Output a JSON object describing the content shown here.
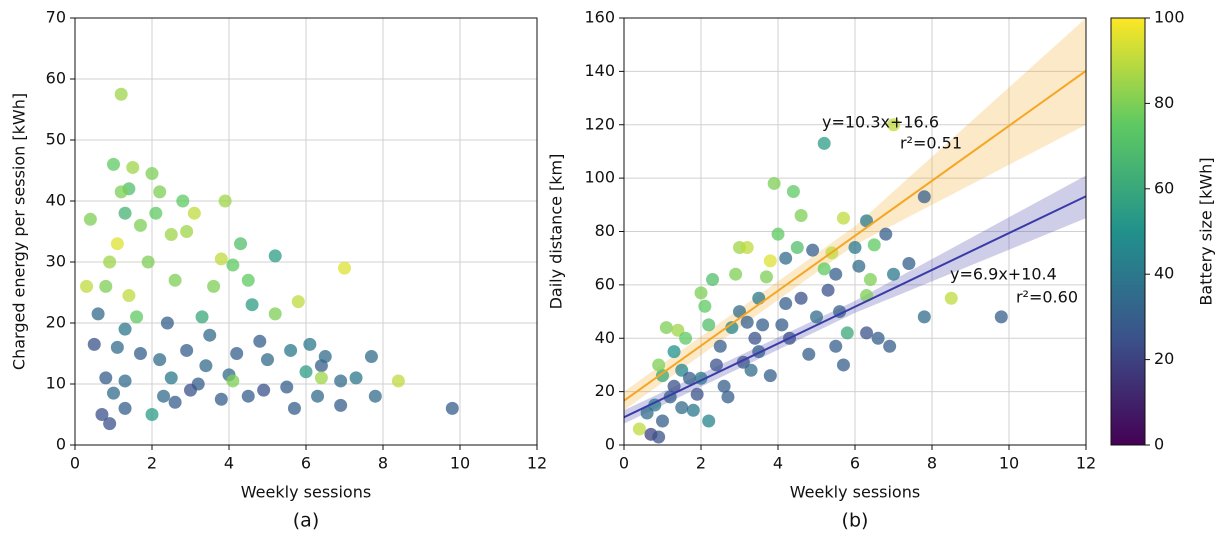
{
  "chart_data": [
    {
      "type": "scatter",
      "caption": "(a)",
      "xlabel": "Weekly sessions",
      "ylabel": "Charged energy per session [kWh]",
      "xlim": [
        0,
        12
      ],
      "ylim": [
        0,
        70
      ],
      "xticks": [
        0,
        2,
        4,
        6,
        8,
        10,
        12
      ],
      "yticks": [
        0,
        10,
        20,
        30,
        40,
        50,
        60,
        70
      ],
      "grid": true,
      "x": [
        1.2,
        1.0,
        2.0,
        1.5,
        1.4,
        1.2,
        2.2,
        2.8,
        3.9,
        0.4,
        1.3,
        2.1,
        1.7,
        3.1,
        2.9,
        1.1,
        2.5,
        4.3,
        5.2,
        7.0,
        0.9,
        1.9,
        3.8,
        4.1,
        0.3,
        0.8,
        1.4,
        2.6,
        3.6,
        4.5,
        5.8,
        4.6,
        1.6,
        3.3,
        5.2,
        0.6,
        1.3,
        2.4,
        3.5,
        4.8,
        0.5,
        1.1,
        1.7,
        2.2,
        2.9,
        3.4,
        4.2,
        5.0,
        5.6,
        6.1,
        6.4,
        0.8,
        1.3,
        2.5,
        3.2,
        4.0,
        4.9,
        5.5,
        6.0,
        6.5,
        6.9,
        7.3,
        7.7,
        6.3,
        6.9,
        7.8,
        8.4,
        9.8,
        0.7,
        0.9,
        1.3,
        2.0,
        2.6,
        3.0,
        4.5,
        5.7,
        1.0,
        2.3,
        3.8,
        4.1,
        6.4
      ],
      "values": [
        57.5,
        46,
        44.5,
        45.5,
        42,
        41.5,
        41.5,
        40,
        40,
        37,
        38,
        38,
        36,
        38,
        35,
        33,
        34.5,
        33,
        31,
        29,
        30,
        30,
        30.5,
        29.5,
        26,
        26,
        24.5,
        27,
        26,
        27,
        23.5,
        23,
        21,
        21,
        21.5,
        21.5,
        19,
        20,
        18,
        17,
        16.5,
        16,
        15,
        14,
        15.5,
        13,
        15,
        14,
        15.5,
        16.5,
        13,
        11,
        10.5,
        11,
        10,
        11.5,
        9,
        9.5,
        12,
        14.5,
        10.5,
        11,
        14.5,
        8,
        6.5,
        8,
        10.5,
        6,
        5,
        3.5,
        6,
        5,
        7,
        9,
        8,
        6,
        8.5,
        8,
        7.5,
        10.5,
        11
      ],
      "color_values": [
        85,
        75,
        80,
        85,
        70,
        80,
        80,
        75,
        85,
        80,
        65,
        75,
        80,
        90,
        85,
        95,
        85,
        70,
        55,
        95,
        85,
        80,
        90,
        75,
        90,
        80,
        90,
        80,
        80,
        75,
        90,
        55,
        75,
        60,
        80,
        35,
        40,
        30,
        35,
        30,
        25,
        35,
        30,
        35,
        30,
        35,
        30,
        35,
        40,
        40,
        30,
        30,
        35,
        40,
        30,
        35,
        25,
        30,
        55,
        35,
        35,
        40,
        35,
        35,
        30,
        35,
        90,
        30,
        25,
        25,
        30,
        55,
        30,
        25,
        30,
        30,
        35,
        35,
        30,
        80,
        85
      ]
    },
    {
      "type": "scatter",
      "caption": "(b)",
      "xlabel": "Weekly sessions",
      "ylabel": "Daily distance [km]",
      "xlim": [
        0,
        12
      ],
      "ylim": [
        0,
        160
      ],
      "xticks": [
        0,
        2,
        4,
        6,
        8,
        10,
        12
      ],
      "yticks": [
        0,
        20,
        40,
        60,
        80,
        100,
        120,
        140,
        160
      ],
      "grid": true,
      "x": [
        0.4,
        0.7,
        0.9,
        1.0,
        0.6,
        0.8,
        1.2,
        1.0,
        0.9,
        1.1,
        1.4,
        1.6,
        1.3,
        1.5,
        1.7,
        1.9,
        1.8,
        2.0,
        2.1,
        2.3,
        2.2,
        2.5,
        2.4,
        2.6,
        2.7,
        2.8,
        2.9,
        3.0,
        3.2,
        3.0,
        3.2,
        3.4,
        3.6,
        3.1,
        3.3,
        3.5,
        3.7,
        3.8,
        3.8,
        3.9,
        4.0,
        4.1,
        4.2,
        4.4,
        4.5,
        4.6,
        4.3,
        4.6,
        4.8,
        4.9,
        5.0,
        5.2,
        5.2,
        5.3,
        5.4,
        5.5,
        5.6,
        5.7,
        5.7,
        5.8,
        6.0,
        6.1,
        6.3,
        6.3,
        6.5,
        6.6,
        6.8,
        7.0,
        7.0,
        6.9,
        7.4,
        7.8,
        7.8,
        8.5,
        9.8,
        1.3,
        2.0,
        2.2,
        1.5,
        3.5,
        4.2,
        5.5,
        6.3,
        6.4
      ],
      "values": [
        6,
        4,
        3,
        9,
        12,
        15,
        18,
        26,
        30,
        44,
        43,
        40,
        22,
        28,
        25,
        19,
        13,
        57,
        52,
        62,
        45,
        37,
        30,
        22,
        18,
        44,
        64,
        74,
        74,
        50,
        46,
        40,
        45,
        31,
        28,
        35,
        63,
        69,
        26,
        98,
        79,
        45,
        53,
        95,
        74,
        86,
        40,
        55,
        34,
        73,
        48,
        113,
        66,
        58,
        72,
        64,
        50,
        85,
        30,
        42,
        74,
        67,
        84,
        42,
        75,
        40,
        79,
        120,
        64,
        37,
        68,
        93,
        48,
        55,
        48,
        35,
        25,
        9,
        14,
        55,
        70,
        37,
        56,
        62
      ],
      "color_values": [
        90,
        20,
        25,
        30,
        35,
        40,
        30,
        60,
        80,
        80,
        85,
        75,
        25,
        45,
        30,
        25,
        40,
        80,
        75,
        70,
        70,
        30,
        25,
        30,
        30,
        45,
        80,
        85,
        90,
        35,
        30,
        25,
        30,
        25,
        35,
        30,
        80,
        95,
        30,
        80,
        75,
        30,
        30,
        75,
        70,
        80,
        25,
        25,
        30,
        30,
        35,
        55,
        75,
        25,
        90,
        30,
        30,
        90,
        30,
        60,
        40,
        35,
        40,
        25,
        75,
        30,
        30,
        90,
        40,
        30,
        30,
        30,
        35,
        90,
        30,
        50,
        40,
        45,
        35,
        40,
        35,
        30,
        80,
        80
      ],
      "fits": [
        {
          "color": "#f5a623",
          "annotation": [
            "y=10.3x+16.6",
            "r²=0.51"
          ],
          "x": [
            0,
            6,
            12
          ],
          "y": [
            16.6,
            78.4,
            140.2
          ],
          "lower": [
            13,
            75,
            120
          ],
          "upper": [
            20,
            82,
            160
          ]
        },
        {
          "color": "#3b3ba8",
          "annotation": [
            "y=6.9x+10.4",
            "r²=0.60"
          ],
          "x": [
            0,
            6,
            12
          ],
          "y": [
            10.4,
            51.8,
            93.2
          ],
          "lower": [
            8,
            49.5,
            85
          ],
          "upper": [
            13,
            54,
            101
          ]
        }
      ],
      "colorbar": {
        "label": "Battery size [kWh]",
        "lim": [
          0,
          100
        ],
        "ticks": [
          0,
          20,
          40,
          60,
          80,
          100
        ]
      }
    }
  ]
}
